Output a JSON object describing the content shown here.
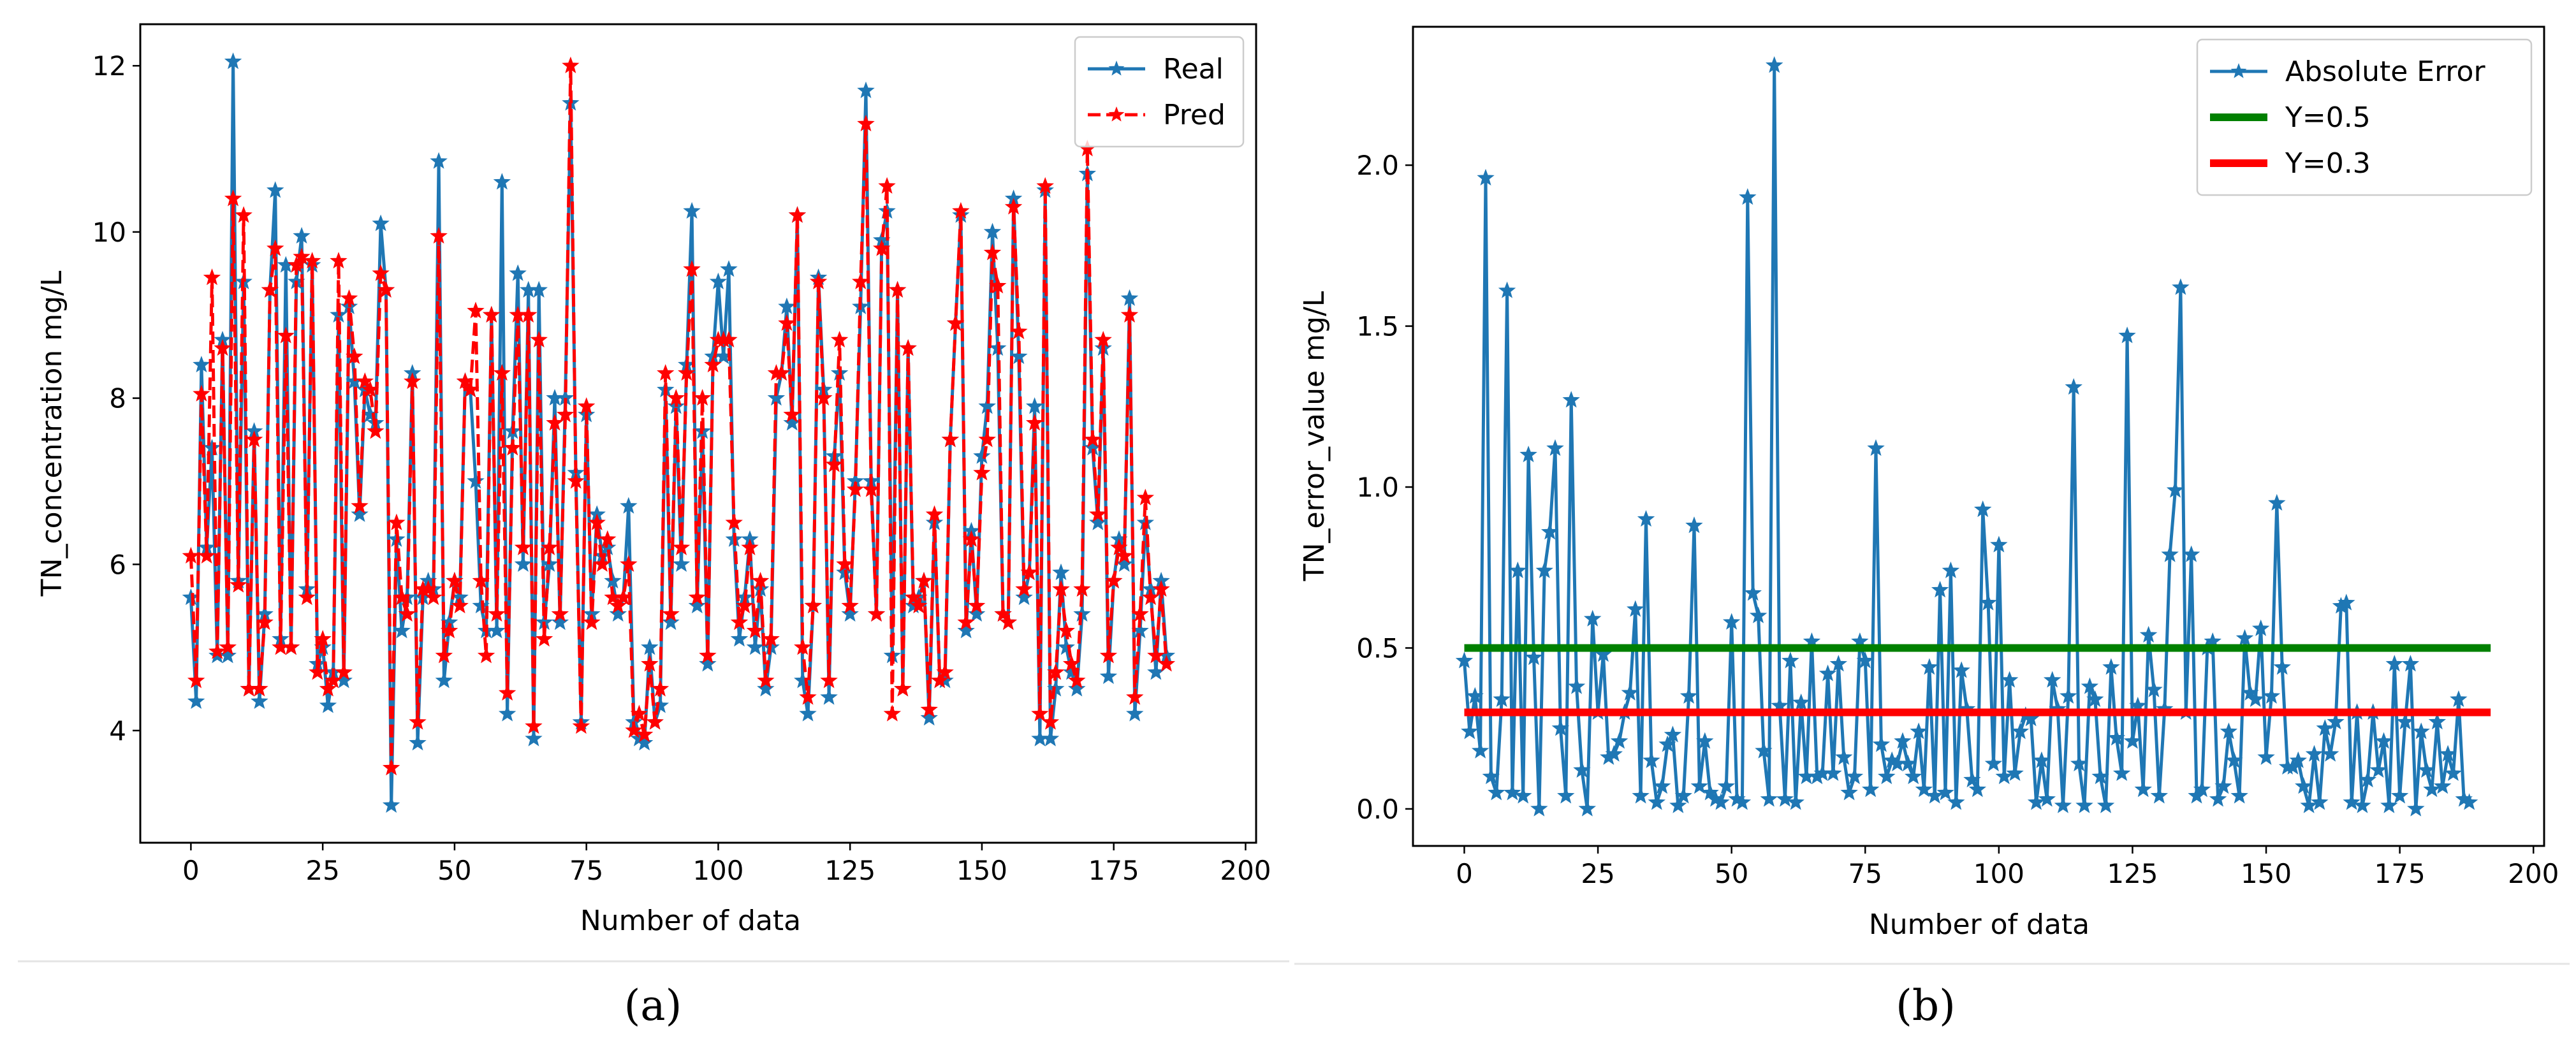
{
  "figure": {
    "captions": [
      "(a)",
      "(b)"
    ]
  },
  "chart_data": [
    {
      "type": "line",
      "ylabel": "TN_concentration mg/L",
      "xlabel": "Number of data",
      "xlim": [
        -9.6,
        202
      ],
      "ylim": [
        2.65,
        12.5
      ],
      "x_ticks": [
        0,
        25,
        50,
        75,
        100,
        125,
        150,
        175,
        200
      ],
      "y_ticks": [
        4,
        6,
        8,
        10,
        12
      ],
      "legend_position": "top-right",
      "colors": {
        "Real": "#1f77b4",
        "Pred": "#ff0000"
      },
      "series": [
        {
          "name": "Real",
          "style": "solid",
          "values": [
            5.6,
            4.35,
            8.4,
            6.2,
            7.4,
            4.9,
            8.7,
            4.9,
            12.05,
            5.8,
            9.4,
            4.5,
            7.6,
            4.35,
            5.4,
            9.3,
            10.5,
            5.1,
            9.6,
            5.0,
            9.4,
            9.95,
            5.7,
            9.6,
            4.8,
            5.0,
            4.3,
            4.7,
            9.0,
            4.6,
            9.1,
            8.2,
            6.6,
            8.1,
            7.8,
            7.7,
            10.1,
            9.3,
            3.1,
            6.3,
            5.2,
            5.6,
            8.3,
            3.85,
            5.6,
            5.8,
            5.7,
            10.85,
            4.6,
            5.3,
            5.8,
            5.6,
            8.2,
            8.1,
            7.0,
            5.5,
            5.2,
            9.0,
            5.2,
            10.6,
            4.2,
            7.6,
            9.5,
            6.0,
            9.3,
            3.9,
            9.3,
            5.3,
            6.0,
            8.0,
            5.3,
            8.0,
            11.55,
            7.1,
            4.1,
            7.8,
            5.4,
            6.6,
            6.1,
            6.2,
            5.8,
            5.4,
            5.6,
            6.7,
            4.1,
            3.9,
            3.85,
            5.0,
            4.1,
            4.3,
            8.1,
            5.3,
            7.9,
            6.0,
            8.4,
            10.25,
            5.5,
            7.6,
            4.8,
            8.5,
            9.4,
            8.5,
            9.55,
            6.3,
            5.1,
            5.6,
            6.3,
            5.0,
            5.7,
            4.5,
            5.0,
            8.0,
            8.3,
            9.1,
            7.7,
            10.2,
            4.6,
            4.2,
            5.5,
            9.45,
            8.1,
            4.4,
            7.3,
            8.3,
            5.9,
            5.4,
            7.0,
            9.1,
            11.7,
            7.0,
            5.4,
            9.9,
            10.25,
            4.9,
            9.3,
            4.5,
            8.6,
            5.5,
            5.6,
            5.8,
            4.15,
            6.5,
            4.6,
            4.6,
            7.5,
            8.9,
            10.2,
            5.2,
            6.4,
            5.4,
            7.3,
            7.9,
            10.0,
            8.6,
            5.4,
            5.3,
            10.4,
            8.5,
            5.6,
            5.9,
            7.9,
            3.9,
            10.5,
            3.9,
            4.5,
            5.9,
            5.0,
            4.7,
            4.5,
            5.4,
            10.7,
            7.4,
            6.5,
            8.6,
            4.65,
            5.8,
            6.3,
            6.0,
            9.2,
            4.2,
            5.2,
            6.5,
            5.7,
            4.7,
            5.8,
            4.9
          ],
          "markers": "star"
        },
        {
          "name": "Pred",
          "style": "dashed",
          "values": [
            6.1,
            4.6,
            8.05,
            6.1,
            9.45,
            4.95,
            8.6,
            5.0,
            10.4,
            5.75,
            10.2,
            4.5,
            7.5,
            4.5,
            5.3,
            9.3,
            9.8,
            5.0,
            8.75,
            5.0,
            9.6,
            9.7,
            5.6,
            9.65,
            4.7,
            5.1,
            4.5,
            4.6,
            9.65,
            4.7,
            9.2,
            8.5,
            6.7,
            8.2,
            8.1,
            7.6,
            9.5,
            9.3,
            3.55,
            6.5,
            5.6,
            5.4,
            8.2,
            4.1,
            5.7,
            5.7,
            5.6,
            9.95,
            4.9,
            5.2,
            5.8,
            5.5,
            8.2,
            8.1,
            9.05,
            5.8,
            4.9,
            9.0,
            5.4,
            8.3,
            4.45,
            7.4,
            9.0,
            6.2,
            9.0,
            4.05,
            8.7,
            5.1,
            6.2,
            7.7,
            5.4,
            7.8,
            12.0,
            7.0,
            4.05,
            7.9,
            5.3,
            6.5,
            6.0,
            6.3,
            5.6,
            5.5,
            5.6,
            6.0,
            4.0,
            4.2,
            3.95,
            4.8,
            4.1,
            4.5,
            8.3,
            5.4,
            8.0,
            6.2,
            8.3,
            9.55,
            5.6,
            8.0,
            4.9,
            8.4,
            8.7,
            8.7,
            8.7,
            6.5,
            5.3,
            5.5,
            6.2,
            5.2,
            5.8,
            4.6,
            5.1,
            8.3,
            8.3,
            8.9,
            7.8,
            10.2,
            5.0,
            4.4,
            5.5,
            9.4,
            8.0,
            4.6,
            7.2,
            8.7,
            6.0,
            5.5,
            6.9,
            9.4,
            11.3,
            6.9,
            5.4,
            9.8,
            10.55,
            4.2,
            9.3,
            4.5,
            8.6,
            5.6,
            5.5,
            5.8,
            4.25,
            6.6,
            4.6,
            4.7,
            7.5,
            8.9,
            10.25,
            5.3,
            6.3,
            5.5,
            7.1,
            7.5,
            9.75,
            9.35,
            5.4,
            5.3,
            10.3,
            8.8,
            5.7,
            5.9,
            7.7,
            4.2,
            10.55,
            4.1,
            4.7,
            5.7,
            5.2,
            4.8,
            4.6,
            5.7,
            11.0,
            7.5,
            6.6,
            8.7,
            4.9,
            5.8,
            6.2,
            6.1,
            9.0,
            4.4,
            5.4,
            6.8,
            5.6,
            4.9,
            5.7,
            4.8
          ],
          "markers": "star"
        }
      ]
    },
    {
      "type": "line",
      "ylabel": "TN_error_value mg/L",
      "xlabel": "Number of data",
      "xlim": [
        -9.6,
        202
      ],
      "ylim": [
        -0.115,
        2.43
      ],
      "x_ticks": [
        0,
        25,
        50,
        75,
        100,
        125,
        150,
        175,
        200
      ],
      "y_ticks": [
        0.0,
        0.5,
        1.0,
        1.5,
        2.0
      ],
      "y_tick_labels": [
        "0.0",
        "0.5",
        "1.0",
        "1.5",
        "2.0"
      ],
      "legend_position": "top-right",
      "colors": {
        "Absolute Error": "#1f77b4",
        "Y=0.5": "#008000",
        "Y=0.3": "#ff0000"
      },
      "series": [
        {
          "name": "Absolute Error",
          "style": "solid",
          "markers": "star",
          "values": [
            0.46,
            0.24,
            0.35,
            0.18,
            1.96,
            0.1,
            0.05,
            0.34,
            1.61,
            0.05,
            0.74,
            0.04,
            1.1,
            0.47,
            0.0,
            0.74,
            0.86,
            1.12,
            0.25,
            0.04,
            1.27,
            0.38,
            0.12,
            0.0,
            0.59,
            0.3,
            0.48,
            0.16,
            0.17,
            0.21,
            0.3,
            0.36,
            0.62,
            0.04,
            0.9,
            0.15,
            0.02,
            0.07,
            0.2,
            0.23,
            0.01,
            0.04,
            0.35,
            0.88,
            0.07,
            0.21,
            0.05,
            0.03,
            0.02,
            0.07,
            0.58,
            0.03,
            0.02,
            1.9,
            0.67,
            0.6,
            0.18,
            0.03,
            2.31,
            0.32,
            0.03,
            0.46,
            0.02,
            0.33,
            0.1,
            0.52,
            0.1,
            0.11,
            0.42,
            0.11,
            0.45,
            0.16,
            0.05,
            0.1,
            0.52,
            0.46,
            0.06,
            1.12,
            0.2,
            0.1,
            0.15,
            0.14,
            0.21,
            0.14,
            0.1,
            0.24,
            0.06,
            0.44,
            0.04,
            0.68,
            0.05,
            0.74,
            0.02,
            0.43,
            0.31,
            0.09,
            0.06,
            0.93,
            0.64,
            0.14,
            0.82,
            0.1,
            0.4,
            0.11,
            0.24,
            0.29,
            0.28,
            0.02,
            0.15,
            0.03,
            0.4,
            0.31,
            0.01,
            0.35,
            1.31,
            0.14,
            0.01,
            0.38,
            0.34,
            0.1,
            0.01,
            0.44,
            0.22,
            0.11,
            1.47,
            0.21,
            0.32,
            0.06,
            0.54,
            0.37,
            0.04,
            0.31,
            0.79,
            0.99,
            1.62,
            0.3,
            0.79,
            0.04,
            0.06,
            0.5,
            0.52,
            0.03,
            0.07,
            0.24,
            0.15,
            0.04,
            0.53,
            0.36,
            0.34,
            0.56,
            0.16,
            0.35,
            0.95,
            0.44,
            0.13,
            0.13,
            0.15,
            0.07,
            0.01,
            0.17,
            0.02,
            0.25,
            0.17,
            0.27,
            0.63,
            0.64,
            0.02,
            0.3,
            0.01,
            0.09,
            0.3,
            0.12,
            0.21,
            0.01,
            0.45,
            0.04,
            0.27,
            0.45,
            0.0,
            0.24,
            0.12,
            0.06,
            0.27,
            0.07,
            0.17,
            0.11,
            0.34,
            0.03,
            0.02
          ]
        },
        {
          "name": "Y=0.5",
          "style": "solid",
          "constant": 0.5,
          "x_range": [
            0,
            192
          ]
        },
        {
          "name": "Y=0.3",
          "style": "solid",
          "constant": 0.3,
          "x_range": [
            0,
            192
          ]
        }
      ]
    }
  ]
}
